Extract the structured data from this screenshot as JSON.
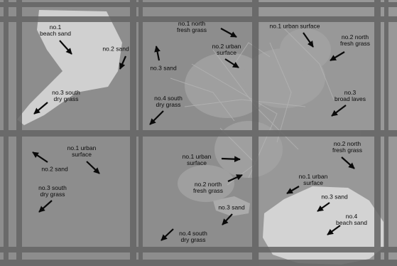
{
  "title": "",
  "colors": {
    "background": "#8d8d8d",
    "grid_lines": "#666666",
    "light_area": "#d3d3d3",
    "town": "#9e9e9e",
    "label_text": "#0a0a0a",
    "arrow": "#0a0a0a"
  },
  "labels": [
    {
      "id": "beach-sand-1",
      "text": "no.1\nbeach sand"
    },
    {
      "id": "sand-2-top",
      "text": "no.2 sand"
    },
    {
      "id": "sand-3-top",
      "text": "no.3 sand"
    },
    {
      "id": "north-fresh-grass-1",
      "text": "no.1 north\nfresh grass"
    },
    {
      "id": "urban-surface-2-top",
      "text": "no.2 urban\nsurface"
    },
    {
      "id": "urban-surface-1-top",
      "text": "no.1 urban surface"
    },
    {
      "id": "north-fresh-grass-2-top",
      "text": "no.2 north\nfresh grass"
    },
    {
      "id": "south-dry-grass-3-top",
      "text": "no.3 south\ndry grass"
    },
    {
      "id": "south-dry-grass-4-top",
      "text": "no.4 south\ndry grass"
    },
    {
      "id": "broad-laves-3",
      "text": "no.3\nbroad laves"
    },
    {
      "id": "urban-surface-1-left",
      "text": "no.1 urban\nsurface"
    },
    {
      "id": "sand-2-left",
      "text": "no.2 sand"
    },
    {
      "id": "south-dry-grass-3-left",
      "text": "no.3 south\ndry grass"
    },
    {
      "id": "urban-surface-1-center",
      "text": "no.1 urban\nsurface"
    },
    {
      "id": "north-fresh-grass-2-center",
      "text": "no.2 north\nfresh grass"
    },
    {
      "id": "north-fresh-grass-2-right",
      "text": "no.2 north\nfresh grass"
    },
    {
      "id": "urban-surface-1-right",
      "text": "no.1 urban\nsurface"
    },
    {
      "id": "sand-3-bottom-right",
      "text": "no.3 sand"
    },
    {
      "id": "beach-sand-4",
      "text": "no.4\nbeach sand"
    },
    {
      "id": "sand-3-bottom",
      "text": "no.3 sand"
    },
    {
      "id": "south-dry-grass-4-bottom",
      "text": "no.4 south\ndry grass"
    }
  ]
}
